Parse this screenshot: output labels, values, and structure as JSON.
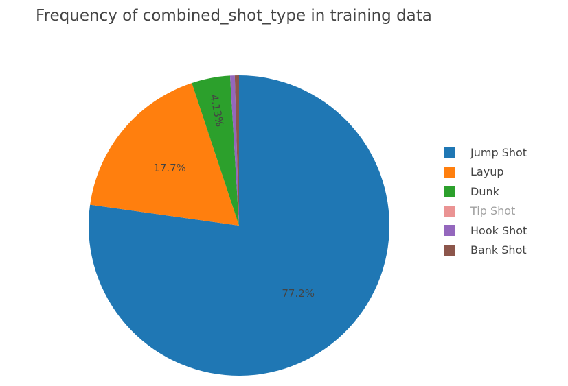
{
  "chart_data": {
    "type": "pie",
    "title": "Frequency of combined_shot_type in training data",
    "slices": [
      {
        "label": "Jump Shot",
        "value": 77.2,
        "text": "77.2%",
        "color": "#1f77b4",
        "visible": true
      },
      {
        "label": "Layup",
        "value": 17.7,
        "text": "17.7%",
        "color": "#ff7f0e",
        "visible": true
      },
      {
        "label": "Dunk",
        "value": 4.13,
        "text": "4.13%",
        "color": "#2ca02c",
        "visible": true
      },
      {
        "label": "Tip Shot",
        "value": 0.7,
        "text": "",
        "color": "#d62728",
        "visible": false
      },
      {
        "label": "Hook Shot",
        "value": 0.5,
        "text": "",
        "color": "#9467bd",
        "visible": true
      },
      {
        "label": "Bank Shot",
        "value": 0.45,
        "text": "",
        "color": "#8c564b",
        "visible": true
      }
    ],
    "legend_position": "right",
    "text_color": "#444444"
  }
}
